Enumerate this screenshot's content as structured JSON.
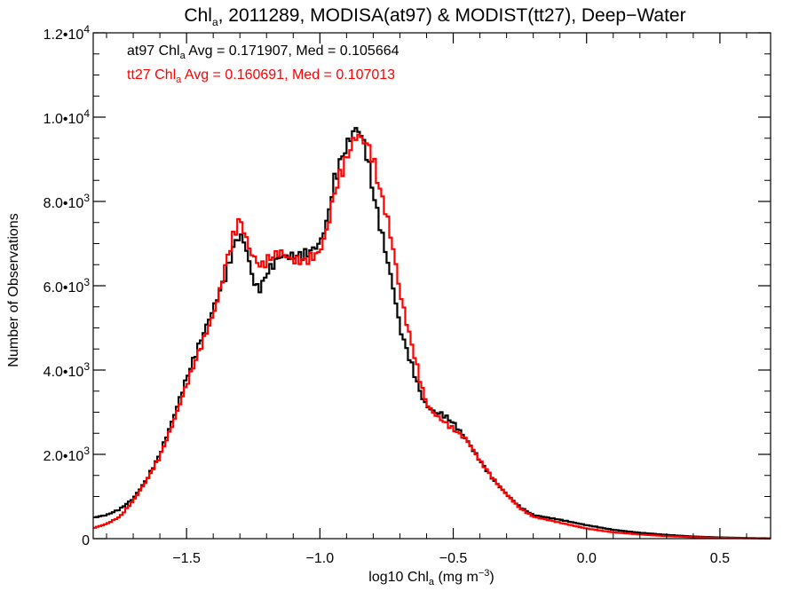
{
  "chart_data": {
    "type": "histogram-line",
    "title": {
      "prefix": "Chl",
      "sub": "a",
      "rest": ", 2011289, MODISA(at97) & MODIST(tt27), Deep−Water"
    },
    "xlabel": {
      "prefix": "log10 Chl",
      "sub": "a",
      "mid": " (mg m",
      "sup": "−3",
      "end": ")"
    },
    "ylabel": "Number of Observations",
    "xlim": [
      -1.85,
      0.69
    ],
    "ylim": [
      0,
      12000
    ],
    "x_ticks": [
      {
        "value": -1.5,
        "label": "−1.5"
      },
      {
        "value": -1.0,
        "label": "−1.0"
      },
      {
        "value": -0.5,
        "label": "−0.5"
      },
      {
        "value": 0.0,
        "label": "0.0"
      },
      {
        "value": 0.5,
        "label": "0.5"
      }
    ],
    "y_ticks": [
      {
        "value": 0,
        "label": "0",
        "exp": ""
      },
      {
        "value": 2000,
        "label": "2.0•10",
        "exp": "3"
      },
      {
        "value": 4000,
        "label": "4.0•10",
        "exp": "3"
      },
      {
        "value": 6000,
        "label": "6.0•10",
        "exp": "3"
      },
      {
        "value": 8000,
        "label": "8.0•10",
        "exp": "3"
      },
      {
        "value": 10000,
        "label": "1.0•10",
        "exp": "4"
      },
      {
        "value": 12000,
        "label": "1.2•10",
        "exp": "4"
      }
    ],
    "annotations": [
      {
        "name": "annotation-at97",
        "prefix": "at97 Chl",
        "sub": "a",
        "rest": " Avg = 0.171907, Med = 0.105664",
        "color": "#000000"
      },
      {
        "name": "annotation-tt27",
        "prefix": "tt27 Chl",
        "sub": "a",
        "rest": " Avg = 0.160691, Med = 0.107013",
        "color": "#ff0000"
      }
    ],
    "series": [
      {
        "name": "at97",
        "color": "#000000",
        "points": [
          [
            -1.85,
            500
          ],
          [
            -1.8,
            560
          ],
          [
            -1.75,
            700
          ],
          [
            -1.7,
            950
          ],
          [
            -1.65,
            1400
          ],
          [
            -1.6,
            2000
          ],
          [
            -1.55,
            2850
          ],
          [
            -1.5,
            3800
          ],
          [
            -1.45,
            4650
          ],
          [
            -1.4,
            5450
          ],
          [
            -1.35,
            6300
          ],
          [
            -1.32,
            7000
          ],
          [
            -1.3,
            7200
          ],
          [
            -1.28,
            7000
          ],
          [
            -1.26,
            6400
          ],
          [
            -1.24,
            5950
          ],
          [
            -1.22,
            5950
          ],
          [
            -1.2,
            6300
          ],
          [
            -1.15,
            6700
          ],
          [
            -1.1,
            6700
          ],
          [
            -1.05,
            6750
          ],
          [
            -1.0,
            7000
          ],
          [
            -0.97,
            7600
          ],
          [
            -0.95,
            8400
          ],
          [
            -0.92,
            9000
          ],
          [
            -0.9,
            9300
          ],
          [
            -0.88,
            9600
          ],
          [
            -0.86,
            9750
          ],
          [
            -0.84,
            9500
          ],
          [
            -0.82,
            9000
          ],
          [
            -0.8,
            8200
          ],
          [
            -0.78,
            7600
          ],
          [
            -0.75,
            6700
          ],
          [
            -0.72,
            5800
          ],
          [
            -0.7,
            5000
          ],
          [
            -0.67,
            4400
          ],
          [
            -0.64,
            3800
          ],
          [
            -0.62,
            3400
          ],
          [
            -0.6,
            3150
          ],
          [
            -0.57,
            3000
          ],
          [
            -0.54,
            2950
          ],
          [
            -0.5,
            2750
          ],
          [
            -0.45,
            2350
          ],
          [
            -0.4,
            1850
          ],
          [
            -0.35,
            1400
          ],
          [
            -0.3,
            1050
          ],
          [
            -0.25,
            750
          ],
          [
            -0.2,
            560
          ],
          [
            -0.1,
            450
          ],
          [
            0.0,
            320
          ],
          [
            0.1,
            210
          ],
          [
            0.2,
            140
          ],
          [
            0.3,
            90
          ],
          [
            0.4,
            50
          ],
          [
            0.5,
            30
          ],
          [
            0.6,
            15
          ],
          [
            0.69,
            8
          ]
        ]
      },
      {
        "name": "tt27",
        "color": "#ff0000",
        "points": [
          [
            -1.85,
            250
          ],
          [
            -1.8,
            350
          ],
          [
            -1.75,
            520
          ],
          [
            -1.7,
            900
          ],
          [
            -1.65,
            1380
          ],
          [
            -1.6,
            1950
          ],
          [
            -1.55,
            2750
          ],
          [
            -1.5,
            3650
          ],
          [
            -1.45,
            4500
          ],
          [
            -1.4,
            5300
          ],
          [
            -1.37,
            6000
          ],
          [
            -1.35,
            6600
          ],
          [
            -1.32,
            7250
          ],
          [
            -1.3,
            7600
          ],
          [
            -1.28,
            7200
          ],
          [
            -1.26,
            6800
          ],
          [
            -1.24,
            6600
          ],
          [
            -1.22,
            6450
          ],
          [
            -1.2,
            6600
          ],
          [
            -1.15,
            6800
          ],
          [
            -1.1,
            6600
          ],
          [
            -1.05,
            6600
          ],
          [
            -1.0,
            6800
          ],
          [
            -0.97,
            7400
          ],
          [
            -0.95,
            8100
          ],
          [
            -0.92,
            8700
          ],
          [
            -0.9,
            9000
          ],
          [
            -0.88,
            9350
          ],
          [
            -0.86,
            9600
          ],
          [
            -0.84,
            9450
          ],
          [
            -0.82,
            9350
          ],
          [
            -0.8,
            9000
          ],
          [
            -0.78,
            8400
          ],
          [
            -0.75,
            7700
          ],
          [
            -0.72,
            6700
          ],
          [
            -0.7,
            5850
          ],
          [
            -0.67,
            5000
          ],
          [
            -0.64,
            4200
          ],
          [
            -0.62,
            3650
          ],
          [
            -0.6,
            3200
          ],
          [
            -0.57,
            2950
          ],
          [
            -0.54,
            2800
          ],
          [
            -0.5,
            2600
          ],
          [
            -0.45,
            2350
          ],
          [
            -0.4,
            1850
          ],
          [
            -0.35,
            1420
          ],
          [
            -0.3,
            1050
          ],
          [
            -0.25,
            720
          ],
          [
            -0.2,
            520
          ],
          [
            -0.1,
            380
          ],
          [
            0.0,
            240
          ],
          [
            0.1,
            150
          ],
          [
            0.2,
            100
          ],
          [
            0.3,
            60
          ],
          [
            0.4,
            35
          ],
          [
            0.5,
            20
          ],
          [
            0.6,
            10
          ],
          [
            0.69,
            5
          ]
        ]
      }
    ]
  }
}
